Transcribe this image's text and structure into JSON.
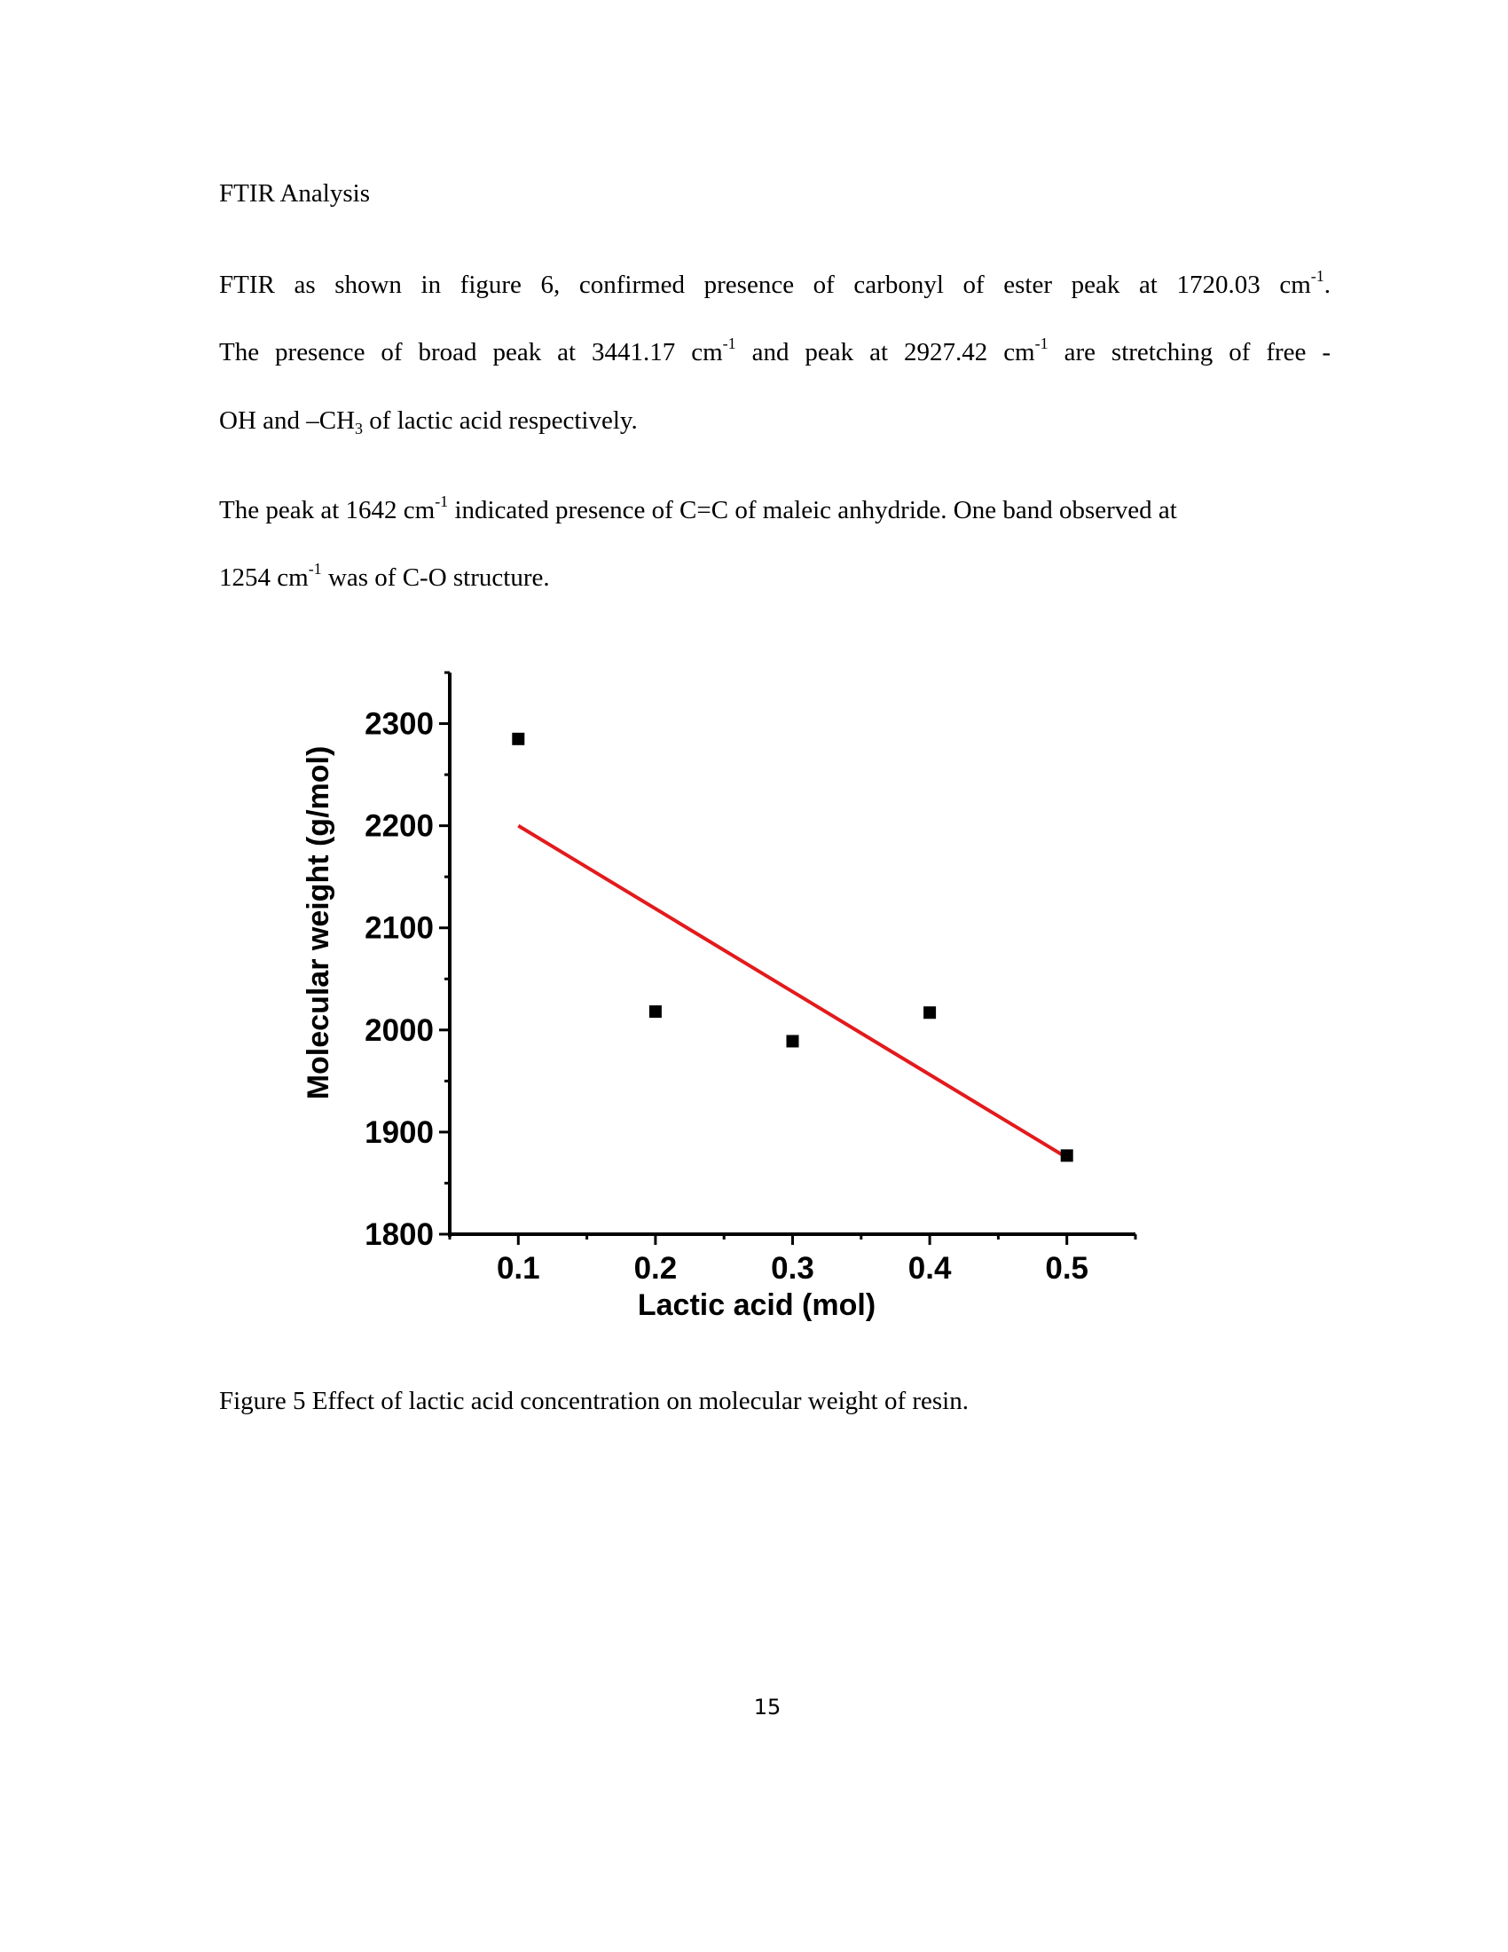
{
  "heading": "FTIR Analysis",
  "paragraph1": {
    "l1a": "FTIR as shown in figure 6, confirmed presence of carbonyl of ester peak at 1720.03 cm",
    "l1sup": "-1",
    "l1b": ".",
    "l2a": "The presence of broad peak at 3441.17 cm",
    "l2sup1": "-1",
    "l2b": " and peak at 2927.42 cm",
    "l2sup2": "-1",
    "l2c": " are stretching of free -",
    "l3a": "OH and –CH",
    "l3sub": "3",
    "l3b": " of lactic acid respectively."
  },
  "paragraph2": {
    "l1a": "The peak at 1642 cm",
    "l1sup": "-1",
    "l1b": " indicated presence of C=C of maleic anhydride. One band observed at",
    "l2a": "1254 cm",
    "l2sup": "-1",
    "l2b": " was of C-O structure."
  },
  "chart_data": {
    "type": "scatter",
    "xlabel": "Lactic acid (mol)",
    "ylabel": "Molecular weight (g/mol)",
    "xlim": [
      0.05,
      0.55
    ],
    "ylim": [
      1800,
      2350
    ],
    "xticks": [
      "0.1",
      "0.2",
      "0.3",
      "0.4",
      "0.5"
    ],
    "yticks": [
      "1800",
      "1900",
      "2000",
      "2100",
      "2200",
      "2300"
    ],
    "grid": false,
    "points": {
      "x": [
        0.1,
        0.2,
        0.3,
        0.4,
        0.5
      ],
      "y": [
        2285,
        2018,
        1989,
        2017,
        1877
      ]
    },
    "fit_line": {
      "x": [
        0.1,
        0.5
      ],
      "y": [
        2200,
        1875
      ],
      "color": "#e31a1c"
    },
    "marker_color": "#000000"
  },
  "caption": "Figure 5 Effect of lactic acid concentration on molecular weight of resin.",
  "page_number": "15"
}
